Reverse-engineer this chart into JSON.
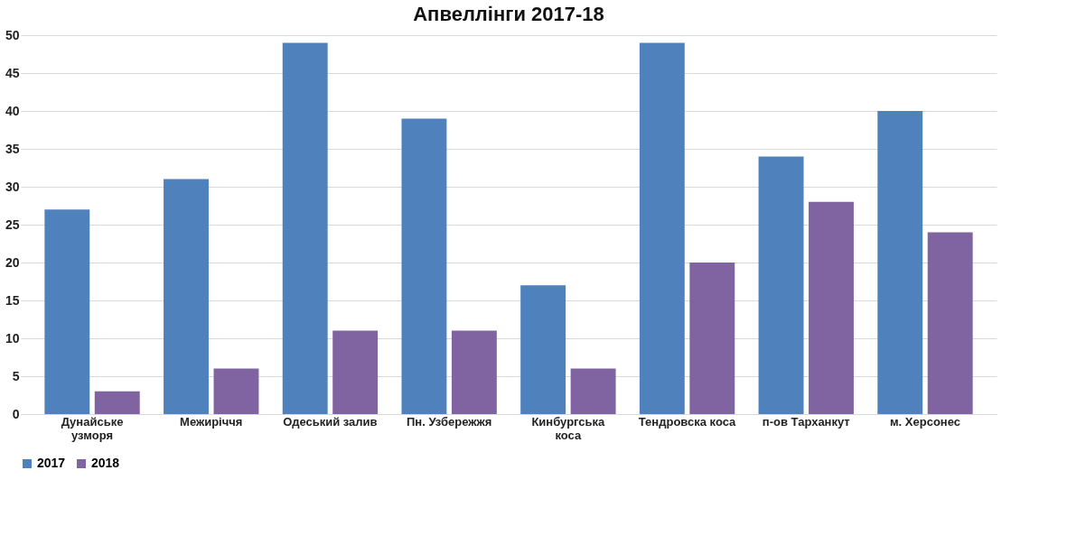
{
  "chart_data": {
    "type": "bar",
    "title": "Апвеллінги 2017-18",
    "categories": [
      "Дунайське узморя",
      "Межиріччя",
      "Одеський залив",
      "Пн. Узбережжя",
      "Кинбургська коса",
      "Тендровска коса",
      "п-ов Тарханкут",
      "м. Херсонес"
    ],
    "series": [
      {
        "name": "2017",
        "color": "#4f81bd",
        "values": [
          27,
          31,
          49,
          39,
          17,
          49,
          34,
          40
        ]
      },
      {
        "name": "2018",
        "color": "#8064a2",
        "values": [
          3,
          6,
          11,
          11,
          6,
          20,
          28,
          24
        ]
      }
    ],
    "ylim": [
      0,
      50
    ],
    "yticks": [
      0,
      5,
      10,
      15,
      20,
      25,
      30,
      35,
      40,
      45,
      50
    ],
    "grid": "y",
    "legend": "bottom"
  }
}
